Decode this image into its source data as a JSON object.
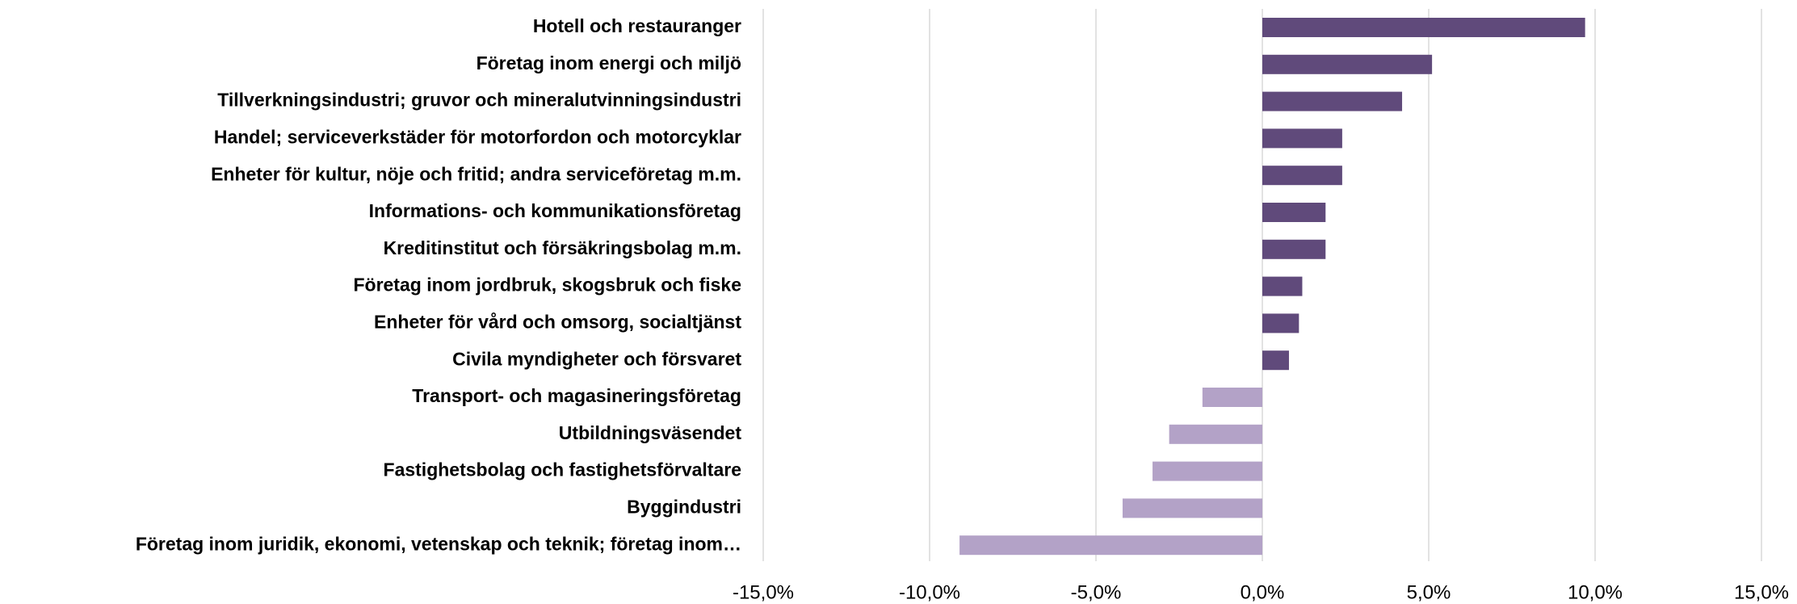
{
  "chart_data": {
    "type": "barh",
    "categories": [
      "Hotell och restauranger",
      "Företag inom energi och miljö",
      "Tillverkningsindustri; gruvor och mineralutvinningsindustri",
      "Handel; serviceverkstäder för motorfordon och motorcyklar",
      "Enheter för kultur, nöje och fritid; andra serviceföretag m.m.",
      "Informations- och kommunikationsföretag",
      "Kreditinstitut och försäkringsbolag m.m.",
      "Företag inom jordbruk, skogsbruk och fiske",
      "Enheter för vård och omsorg, socialtjänst",
      "Civila myndigheter och försvaret",
      "Transport- och magasineringsföretag",
      "Utbildningsväsendet",
      "Fastighetsbolag och fastighetsförvaltare",
      "Byggindustri",
      "Företag inom juridik, ekonomi, vetenskap och teknik; företag inom…"
    ],
    "values": [
      9.7,
      5.1,
      4.2,
      2.4,
      2.4,
      1.9,
      1.9,
      1.2,
      1.1,
      0.8,
      -1.8,
      -2.8,
      -3.3,
      -4.2,
      -9.1
    ],
    "positive_color": "#604a7b",
    "negative_color": "#b3a2c7",
    "xlim": [
      -15,
      15
    ],
    "xticks": [
      {
        "value": -15,
        "label": "-15,0%"
      },
      {
        "value": -10,
        "label": "-10,0%"
      },
      {
        "value": -5,
        "label": "-5,0%"
      },
      {
        "value": 0,
        "label": "0,0%"
      },
      {
        "value": 5,
        "label": "5,0%"
      },
      {
        "value": 10,
        "label": "10,0%"
      },
      {
        "value": 15,
        "label": "15,0%"
      }
    ],
    "grid": true
  }
}
